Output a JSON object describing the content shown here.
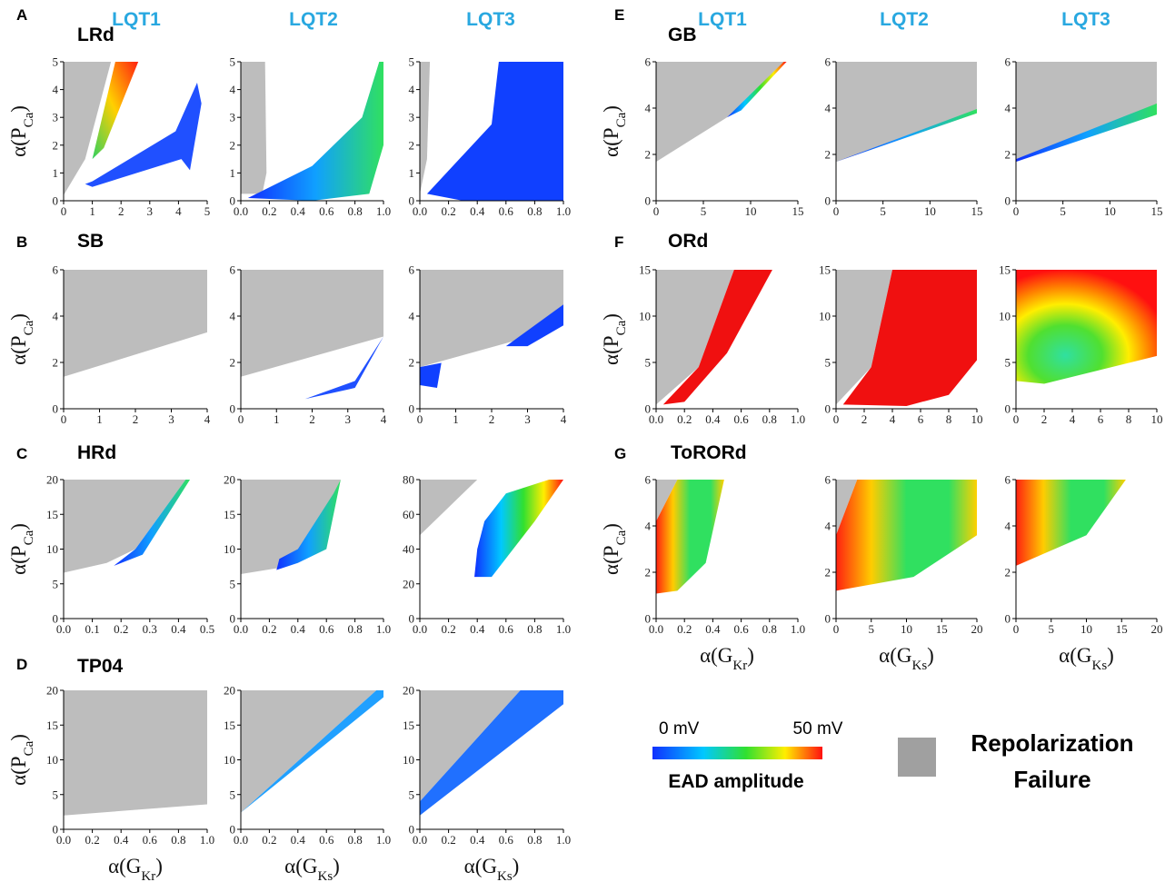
{
  "columns_left": [
    "LQT1",
    "LQT2",
    "LQT3"
  ],
  "columns_right": [
    "LQT1",
    "LQT2",
    "LQT3"
  ],
  "chart_data": [
    {
      "type": "region",
      "panel": "A",
      "model": "LRd",
      "ylabel": {
        "main": "α(P",
        "sub": "Ca",
        "close": ")"
      },
      "xlim": [
        0,
        5
      ],
      "ylim": [
        0,
        5
      ],
      "xticks": [
        0,
        1,
        2,
        3,
        4,
        5
      ],
      "yticks": [
        0,
        1,
        2,
        3,
        4,
        5
      ]
    },
    {
      "type": "region",
      "xlim": [
        0,
        1
      ],
      "ylim": [
        0,
        5
      ],
      "xticks": [
        {
          "value": 0,
          "label": "0.0"
        },
        0.2,
        0.4,
        0.6,
        0.8,
        {
          "value": 1,
          "label": "1.0"
        }
      ],
      "yticks": [
        0,
        1,
        2,
        3,
        4,
        5
      ]
    },
    {
      "type": "region",
      "xlim": [
        0,
        1
      ],
      "ylim": [
        0,
        5
      ],
      "xticks": [
        {
          "value": 0,
          "label": "0.0"
        },
        0.2,
        0.4,
        0.6,
        0.8,
        {
          "value": 1,
          "label": "1.0"
        }
      ],
      "yticks": [
        0,
        1,
        2,
        3,
        4,
        5
      ]
    },
    {
      "type": "region",
      "panel": "B",
      "model": "SB",
      "ylabel": {
        "main": "α(P",
        "sub": "Ca",
        "close": ")"
      },
      "xlim": [
        0,
        4
      ],
      "ylim": [
        0,
        6
      ],
      "xticks": [
        0,
        1,
        2,
        3,
        4
      ],
      "yticks": [
        0,
        2,
        4,
        6
      ]
    },
    {
      "type": "region",
      "xlim": [
        0,
        4
      ],
      "ylim": [
        0,
        6
      ],
      "xticks": [
        0,
        1,
        2,
        3,
        4
      ],
      "yticks": [
        0,
        2,
        4,
        6
      ]
    },
    {
      "type": "region",
      "xlim": [
        0,
        4
      ],
      "ylim": [
        0,
        6
      ],
      "xticks": [
        0,
        1,
        2,
        3,
        4
      ],
      "yticks": [
        0,
        2,
        4,
        6
      ]
    },
    {
      "type": "region",
      "panel": "C",
      "model": "HRd",
      "ylabel": {
        "main": "α(P",
        "sub": "Ca",
        "close": ")"
      },
      "xlim": [
        0,
        0.5
      ],
      "ylim": [
        0,
        20
      ],
      "xticks": [
        {
          "value": 0,
          "label": "0.0"
        },
        0.1,
        0.2,
        0.3,
        0.4,
        0.5
      ],
      "yticks": [
        0,
        5,
        10,
        15,
        20
      ]
    },
    {
      "type": "region",
      "xlim": [
        0,
        1
      ],
      "ylim": [
        0,
        20
      ],
      "xticks": [
        {
          "value": 0,
          "label": "0.0"
        },
        0.2,
        0.4,
        0.6,
        0.8,
        {
          "value": 1,
          "label": "1.0"
        }
      ],
      "yticks": [
        0,
        5,
        10,
        15,
        20
      ]
    },
    {
      "type": "region",
      "xlim": [
        0,
        1
      ],
      "ylim": [
        0,
        80
      ],
      "xticks": [
        {
          "value": 0,
          "label": "0.0"
        },
        0.2,
        0.4,
        0.6,
        0.8,
        {
          "value": 1,
          "label": "1.0"
        }
      ],
      "yticks": [
        0,
        20,
        40,
        60,
        80
      ]
    },
    {
      "type": "region",
      "panel": "D",
      "model": "TP04",
      "ylabel": {
        "main": "α(P",
        "sub": "Ca",
        "close": ")"
      },
      "xlabel": {
        "main": "α(G",
        "sub": "Kr",
        "close": ")"
      },
      "xlim": [
        0,
        1
      ],
      "ylim": [
        0,
        20
      ],
      "xticks": [
        {
          "value": 0,
          "label": "0.0"
        },
        0.2,
        0.4,
        0.6,
        0.8,
        {
          "value": 1,
          "label": "1.0"
        }
      ],
      "yticks": [
        0,
        5,
        10,
        15,
        20
      ]
    },
    {
      "type": "region",
      "xlabel": {
        "main": "α(G",
        "sub": "Ks",
        "close": ")"
      },
      "xlim": [
        0,
        1
      ],
      "ylim": [
        0,
        20
      ],
      "xticks": [
        {
          "value": 0,
          "label": "0.0"
        },
        0.2,
        0.4,
        0.6,
        0.8,
        {
          "value": 1,
          "label": "1.0"
        }
      ],
      "yticks": [
        0,
        5,
        10,
        15,
        20
      ]
    },
    {
      "type": "region",
      "xlabel": {
        "main": "α(G",
        "sub": "Ks",
        "close": ")"
      },
      "xlim": [
        0,
        1
      ],
      "ylim": [
        0,
        20
      ],
      "xticks": [
        {
          "value": 0,
          "label": "0.0"
        },
        0.2,
        0.4,
        0.6,
        0.8,
        {
          "value": 1,
          "label": "1.0"
        }
      ],
      "yticks": [
        0,
        5,
        10,
        15,
        20
      ]
    },
    {
      "type": "region",
      "panel": "E",
      "model": "GB",
      "ylabel": {
        "main": "α(P",
        "sub": "Ca",
        "close": ")"
      },
      "xlim": [
        0,
        15
      ],
      "ylim": [
        0,
        6
      ],
      "xticks": [
        0,
        5,
        10,
        15
      ],
      "yticks": [
        0,
        2,
        4,
        6
      ]
    },
    {
      "type": "region",
      "xlim": [
        0,
        15
      ],
      "ylim": [
        0,
        6
      ],
      "xticks": [
        0,
        5,
        10,
        15
      ],
      "yticks": [
        0,
        2,
        4,
        6
      ]
    },
    {
      "type": "region",
      "xlim": [
        0,
        15
      ],
      "ylim": [
        0,
        6
      ],
      "xticks": [
        0,
        5,
        10,
        15
      ],
      "yticks": [
        0,
        2,
        4,
        6
      ]
    },
    {
      "type": "region",
      "panel": "F",
      "model": "ORd",
      "ylabel": {
        "main": "α(P",
        "sub": "Ca",
        "close": ")"
      },
      "xlim": [
        0,
        1
      ],
      "ylim": [
        0,
        15
      ],
      "xticks": [
        {
          "value": 0,
          "label": "0.0"
        },
        0.2,
        0.4,
        0.6,
        0.8,
        {
          "value": 1,
          "label": "1.0"
        }
      ],
      "yticks": [
        0,
        5,
        10,
        15
      ]
    },
    {
      "type": "region",
      "xlim": [
        0,
        10
      ],
      "ylim": [
        0,
        15
      ],
      "xticks": [
        0,
        2,
        4,
        6,
        8,
        10
      ],
      "yticks": [
        0,
        5,
        10,
        15
      ]
    },
    {
      "type": "region",
      "xlim": [
        0,
        10
      ],
      "ylim": [
        0,
        15
      ],
      "xticks": [
        0,
        2,
        4,
        6,
        8,
        10
      ],
      "yticks": [
        0,
        5,
        10,
        15
      ]
    },
    {
      "type": "region",
      "panel": "G",
      "model": "ToRORd",
      "ylabel": {
        "main": "α(P",
        "sub": "Ca",
        "close": ")"
      },
      "xlabel": {
        "main": "α(G",
        "sub": "Kr",
        "close": ")"
      },
      "xlim": [
        0,
        1
      ],
      "ylim": [
        0,
        6
      ],
      "xticks": [
        {
          "value": 0,
          "label": "0.0"
        },
        0.2,
        0.4,
        0.6,
        0.8,
        {
          "value": 1,
          "label": "1.0"
        }
      ],
      "yticks": [
        0,
        2,
        4,
        6
      ]
    },
    {
      "type": "region",
      "xlabel": {
        "main": "α(G",
        "sub": "Ks",
        "close": ")"
      },
      "xlim": [
        0,
        20
      ],
      "ylim": [
        0,
        6
      ],
      "xticks": [
        0,
        5,
        10,
        15,
        20
      ],
      "yticks": [
        0,
        2,
        4,
        6
      ]
    },
    {
      "type": "region",
      "xlabel": {
        "main": "α(G",
        "sub": "Ks",
        "close": ")"
      },
      "xlim": [
        0,
        20
      ],
      "ylim": [
        0,
        6
      ],
      "xticks": [
        0,
        5,
        10,
        15,
        20
      ],
      "yticks": [
        0,
        2,
        4,
        6
      ]
    }
  ],
  "legend": {
    "min_label": "0 mV",
    "max_label": "50 mV",
    "colorbar_title": "EAD amplitude",
    "failure_label": [
      "Repolarization",
      "Failure"
    ]
  }
}
